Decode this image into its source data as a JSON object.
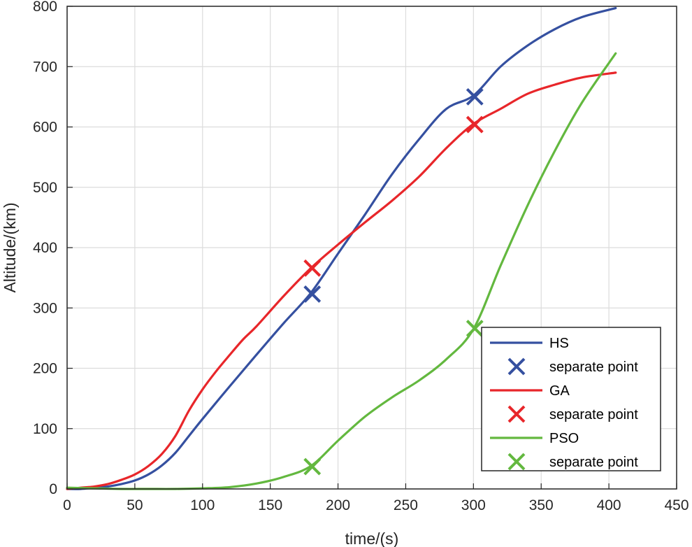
{
  "chart_data": {
    "type": "line",
    "xlabel": "time/(s)",
    "ylabel": "Altitude/(km)",
    "xlim": [
      0,
      450
    ],
    "ylim": [
      0,
      800
    ],
    "xticks": [
      0,
      50,
      100,
      150,
      200,
      250,
      300,
      350,
      400,
      450
    ],
    "yticks": [
      0,
      100,
      200,
      300,
      400,
      500,
      600,
      700,
      800
    ],
    "grid": true,
    "legend_position": "bottom-right",
    "series": [
      {
        "name": "HS",
        "color": "#3550a0",
        "x": [
          0,
          10,
          20,
          30,
          40,
          50,
          60,
          70,
          80,
          90,
          100,
          120,
          140,
          160,
          180,
          200,
          220,
          240,
          260,
          280,
          300,
          320,
          340,
          360,
          380,
          405
        ],
        "y": [
          0,
          0,
          2,
          4,
          8,
          14,
          24,
          39,
          60,
          88,
          116,
          170,
          223,
          275,
          325,
          390,
          455,
          522,
          580,
          630,
          652,
          700,
          735,
          762,
          782,
          797
        ]
      },
      {
        "name": "GA",
        "color": "#e8262a",
        "x": [
          0,
          10,
          20,
          30,
          40,
          50,
          60,
          70,
          80,
          90,
          100,
          110,
          120,
          130,
          140,
          160,
          180,
          200,
          220,
          240,
          260,
          280,
          300,
          320,
          340,
          360,
          380,
          405
        ],
        "y": [
          0,
          2,
          4,
          8,
          15,
          24,
          38,
          58,
          88,
          130,
          165,
          195,
          222,
          248,
          270,
          320,
          366,
          405,
          442,
          478,
          518,
          565,
          605,
          630,
          655,
          670,
          682,
          690
        ]
      },
      {
        "name": "PSO",
        "color": "#63b83f",
        "x": [
          0,
          20,
          40,
          60,
          80,
          100,
          120,
          140,
          160,
          180,
          200,
          220,
          240,
          260,
          280,
          300,
          320,
          340,
          360,
          380,
          405
        ],
        "y": [
          2,
          1,
          0,
          0,
          0,
          1,
          3,
          9,
          20,
          38,
          80,
          120,
          152,
          180,
          215,
          265,
          370,
          470,
          560,
          640,
          722
        ]
      }
    ],
    "separate_points": [
      {
        "series": "HS",
        "name": "separate point",
        "color": "#3550a0",
        "x": [
          181,
          301
        ],
        "y": [
          323,
          650
        ]
      },
      {
        "series": "GA",
        "name": "separate point",
        "color": "#e8262a",
        "x": [
          181,
          301
        ],
        "y": [
          366,
          604
        ]
      },
      {
        "series": "PSO",
        "name": "separate point",
        "color": "#63b83f",
        "x": [
          181,
          301
        ],
        "y": [
          37,
          266
        ]
      }
    ],
    "legend": [
      {
        "label": "HS",
        "kind": "line",
        "color": "#3550a0"
      },
      {
        "label": "separate point",
        "kind": "marker",
        "color": "#3550a0"
      },
      {
        "label": "GA",
        "kind": "line",
        "color": "#e8262a"
      },
      {
        "label": "separate point",
        "kind": "marker",
        "color": "#e8262a"
      },
      {
        "label": "PSO",
        "kind": "line",
        "color": "#63b83f"
      },
      {
        "label": "separate point",
        "kind": "marker",
        "color": "#63b83f"
      }
    ]
  }
}
